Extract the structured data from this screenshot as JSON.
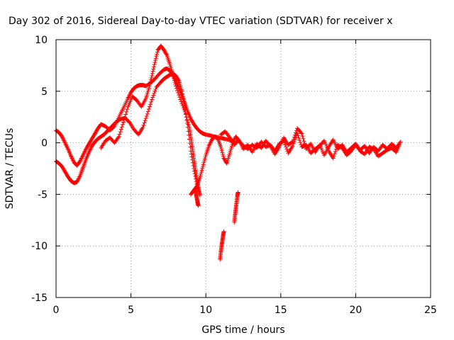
{
  "chart_data": {
    "type": "scatter",
    "title": "Day 302 of 2016, Sidereal Day-to-day VTEC variation (SDTVAR) for receiver x",
    "xlabel": "GPS time / hours",
    "ylabel": "SDTVAR / TECUs",
    "xlim": [
      0,
      25
    ],
    "ylim": [
      -15,
      10
    ],
    "xticks": [
      0,
      5,
      10,
      15,
      20,
      25
    ],
    "yticks": [
      -15,
      -10,
      -5,
      0,
      5,
      10
    ],
    "grid": true,
    "marker": "+",
    "color": "#ff0000",
    "series": [
      {
        "name": "trace-a",
        "x": [
          0.0,
          0.2,
          0.4,
          0.6,
          0.8,
          1.0,
          1.2,
          1.4,
          1.6,
          1.8,
          2.0,
          2.2,
          2.4,
          2.6,
          2.8,
          3.0,
          3.3,
          3.6,
          3.9,
          4.2,
          4.5,
          4.8,
          5.0,
          5.2,
          5.4,
          5.6,
          5.8,
          6.0,
          6.3,
          6.6,
          6.9,
          7.2,
          7.4,
          7.6,
          7.8,
          8.0,
          8.2,
          8.4,
          8.6,
          8.8,
          9.0,
          9.2,
          9.4,
          9.6,
          9.8,
          10.0,
          10.3,
          10.6,
          10.9,
          11.2,
          11.5,
          11.8
        ],
        "y": [
          1.2,
          1.0,
          0.6,
          0.0,
          -0.6,
          -1.3,
          -1.9,
          -2.2,
          -1.8,
          -1.2,
          -0.6,
          -0.1,
          0.4,
          0.9,
          1.4,
          1.8,
          1.6,
          1.2,
          1.6,
          2.5,
          3.4,
          4.3,
          4.9,
          5.3,
          5.5,
          5.6,
          5.6,
          5.5,
          5.8,
          6.2,
          6.7,
          7.1,
          7.2,
          7.0,
          6.6,
          6.0,
          5.3,
          4.6,
          3.8,
          3.0,
          2.3,
          1.8,
          1.4,
          1.1,
          0.9,
          0.8,
          0.7,
          0.6,
          0.5,
          0.4,
          0.3,
          0.2
        ]
      },
      {
        "name": "trace-b",
        "x": [
          0.0,
          0.2,
          0.4,
          0.6,
          0.8,
          1.0,
          1.2,
          1.4,
          1.6,
          1.8,
          2.0,
          2.2,
          2.4,
          2.6,
          2.8,
          3.0,
          3.2,
          3.4,
          3.6,
          3.8,
          4.0,
          4.3,
          4.6,
          4.9,
          5.2,
          5.5,
          5.8,
          6.1,
          6.4,
          6.7,
          7.0,
          7.2,
          7.4,
          7.6,
          7.8,
          8.0,
          8.2,
          8.4,
          8.6,
          8.8,
          9.0,
          9.2,
          9.4,
          9.6
        ],
        "y": [
          -1.8,
          -2.0,
          -2.3,
          -2.8,
          -3.3,
          -3.7,
          -3.9,
          -3.8,
          -3.2,
          -2.4,
          -1.6,
          -0.9,
          -0.3,
          0.1,
          0.4,
          0.6,
          0.8,
          1.1,
          1.4,
          1.7,
          2.0,
          2.3,
          2.4,
          2.0,
          1.3,
          0.8,
          1.5,
          2.8,
          4.2,
          5.4,
          5.9,
          6.2,
          6.4,
          6.6,
          6.7,
          6.5,
          6.0,
          5.0,
          3.5,
          1.5,
          -0.8,
          -2.5,
          -4.0,
          -5.1
        ]
      },
      {
        "name": "trace-c",
        "x": [
          3.0,
          3.3,
          3.6,
          3.9,
          4.2,
          4.5,
          4.8,
          5.1,
          5.4,
          5.7,
          6.0,
          6.2,
          6.4,
          6.6,
          6.8,
          7.0,
          7.2,
          7.4,
          7.6,
          7.8,
          8.0,
          8.3,
          8.6,
          8.9,
          9.0,
          9.1,
          9.2,
          9.3,
          9.4,
          9.5,
          9.6
        ],
        "y": [
          -0.5,
          0.2,
          0.5,
          0.0,
          0.6,
          2.0,
          3.5,
          4.5,
          4.1,
          3.5,
          4.3,
          5.3,
          6.5,
          7.8,
          9.0,
          9.4,
          9.0,
          8.5,
          7.6,
          6.6,
          5.5,
          4.2,
          3.0,
          1.5,
          0.5,
          -0.5,
          -1.5,
          -2.5,
          -3.5,
          -4.3,
          -5.0
        ]
      },
      {
        "name": "trace-d",
        "x": [
          9.0,
          9.2,
          9.4,
          9.6,
          9.8,
          10.0,
          10.2,
          10.4,
          10.6,
          10.8,
          11.0,
          11.2,
          11.4,
          11.6,
          11.8,
          12.0,
          12.2,
          12.5,
          12.8,
          13.1,
          13.4,
          13.7,
          14.0,
          14.3,
          14.6,
          14.9,
          15.2,
          15.5,
          15.8,
          16.1,
          16.4,
          16.7,
          17.0,
          17.3,
          17.6,
          17.9,
          18.2,
          18.5,
          18.8,
          19.1,
          19.4,
          19.7,
          20.0,
          20.3,
          20.6,
          20.9,
          21.2,
          21.5,
          21.8,
          22.1,
          22.4,
          22.7,
          22.9
        ],
        "y": [
          -5.0,
          -4.6,
          -4.2,
          -3.4,
          -2.3,
          -1.2,
          -0.3,
          0.3,
          0.6,
          0.4,
          -0.4,
          -1.5,
          -2.0,
          -1.0,
          0.0,
          0.6,
          0.2,
          -0.3,
          -0.6,
          -0.2,
          -0.5,
          0.1,
          -0.4,
          -0.2,
          -0.8,
          -0.1,
          0.2,
          -1.0,
          -0.3,
          0.9,
          -0.4,
          -0.2,
          -1.0,
          -0.6,
          -0.3,
          0.2,
          -0.8,
          -1.5,
          -0.2,
          -0.5,
          -1.2,
          -0.8,
          -0.2,
          -0.8,
          -1.1,
          -0.4,
          -0.6,
          -1.3,
          -1.0,
          -0.7,
          -0.5,
          -0.9,
          -0.2
        ]
      },
      {
        "name": "trace-e",
        "x": [
          11.0,
          11.3,
          11.6,
          11.9,
          12.2,
          12.5,
          12.8,
          13.1,
          13.4,
          13.7,
          14.0,
          14.3,
          14.6,
          14.9,
          15.2,
          15.5,
          15.8,
          16.1,
          16.4,
          16.7,
          17.0,
          17.3,
          17.6,
          17.9,
          18.2,
          18.5,
          18.8,
          19.1,
          19.4,
          19.7,
          20.0,
          20.3,
          20.6,
          20.9,
          21.2,
          21.5,
          21.8,
          22.1,
          22.4,
          22.7,
          23.0
        ],
        "y": [
          0.8,
          1.1,
          0.5,
          -0.2,
          0.3,
          -0.6,
          -0.2,
          -0.9,
          -0.1,
          -0.5,
          0.2,
          -0.3,
          -1.1,
          -0.4,
          0.5,
          -0.2,
          0.1,
          1.4,
          0.9,
          -0.6,
          -0.1,
          -0.9,
          -0.2,
          -1.2,
          -0.4,
          0.3,
          -0.6,
          -0.2,
          -0.9,
          -0.5,
          -0.1,
          -0.7,
          -0.3,
          -1.0,
          -0.4,
          -0.8,
          -0.2,
          -0.6,
          -0.1,
          -0.5,
          0.1
        ]
      },
      {
        "name": "trace-f",
        "x": [
          9.3,
          9.35,
          9.4,
          9.45,
          9.5
        ],
        "y": [
          -4.5,
          -5.0,
          -5.4,
          -5.8,
          -6.1
        ]
      },
      {
        "name": "trace-g",
        "x": [
          10.95,
          11.0,
          11.05,
          11.1,
          11.15,
          11.2
        ],
        "y": [
          -11.3,
          -10.6,
          -10.0,
          -9.5,
          -9.0,
          -8.6
        ]
      },
      {
        "name": "trace-h",
        "x": [
          11.9,
          11.95,
          12.0,
          12.05,
          12.1,
          12.15
        ],
        "y": [
          -7.7,
          -7.0,
          -6.4,
          -5.8,
          -5.2,
          -4.8
        ]
      }
    ]
  }
}
